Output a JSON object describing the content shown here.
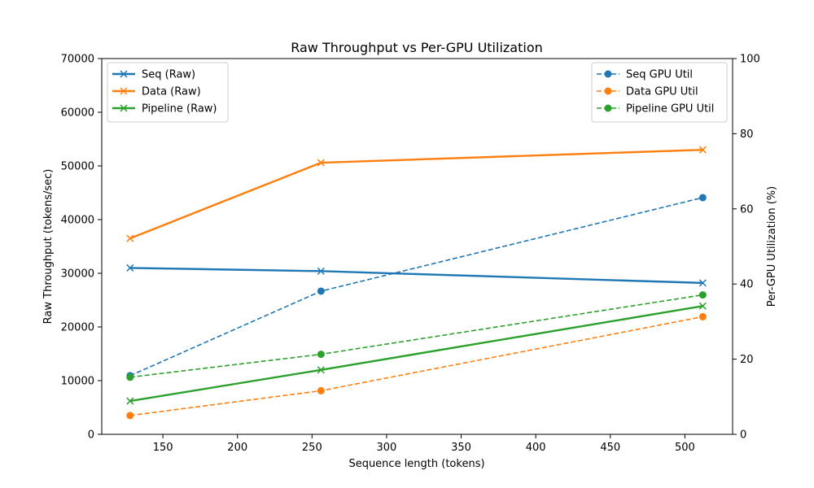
{
  "chart_data": {
    "type": "line",
    "title": "Raw Throughput vs Per-GPU Utilization",
    "xlabel": "Sequence length (tokens)",
    "ylabel_left": "Raw Throughput (tokens/sec)",
    "ylabel_right": "Per-GPU Utilization (%)",
    "x": [
      128,
      256,
      512
    ],
    "xlim": [
      109,
      532
    ],
    "xticks": [
      150,
      200,
      250,
      300,
      350,
      400,
      450,
      500
    ],
    "ylim_left": [
      0,
      70000
    ],
    "yticks_left": [
      0,
      10000,
      20000,
      30000,
      40000,
      50000,
      60000,
      70000
    ],
    "ylim_right": [
      0,
      100
    ],
    "yticks_right": [
      0,
      20,
      40,
      60,
      80,
      100
    ],
    "grid": false,
    "series_left": [
      {
        "name": "Seq (Raw)",
        "color": "#1f77b4",
        "values": [
          31000,
          30400,
          28200
        ]
      },
      {
        "name": "Data (Raw)",
        "color": "#ff7f0e",
        "values": [
          36500,
          50600,
          53000
        ]
      },
      {
        "name": "Pipeline (Raw)",
        "color": "#2ca02c",
        "values": [
          6200,
          12000,
          23900
        ]
      }
    ],
    "series_right": [
      {
        "name": "Seq GPU Util",
        "color": "#1f77b4",
        "values": [
          15.6,
          38.1,
          63.0
        ]
      },
      {
        "name": "Data GPU Util",
        "color": "#ff7f0e",
        "values": [
          5.0,
          11.6,
          31.3
        ]
      },
      {
        "name": "Pipeline GPU Util",
        "color": "#2ca02c",
        "values": [
          15.2,
          21.3,
          37.1
        ]
      }
    ],
    "legend_left_position": "top-left",
    "legend_right_position": "top-right"
  }
}
